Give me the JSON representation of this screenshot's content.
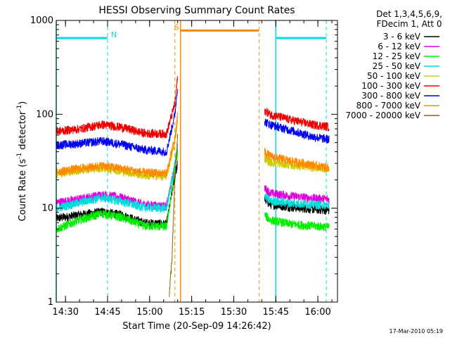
{
  "chart_data": {
    "type": "line",
    "title": "HESSI Observing Summary Count Rates",
    "xlabel": "Start Time (20-Sep-09 14:26:42)",
    "ylabel_main": "Count Rate (s",
    "ylabel_sup1": "-1",
    "ylabel_mid": " detector",
    "ylabel_sup2": "-1",
    "ylabel_end": ")",
    "y_scale": "log",
    "ylim": [
      1,
      1000
    ],
    "xlim": [
      "14:26:42",
      "16:07:00"
    ],
    "y_ticks": [
      {
        "value": 1,
        "label": "1"
      },
      {
        "value": 10,
        "label": "10"
      },
      {
        "value": 100,
        "label": "100"
      },
      {
        "value": 1000,
        "label": "1000"
      }
    ],
    "x_ticks": [
      {
        "time": "14:30",
        "label": "14:30"
      },
      {
        "time": "14:45",
        "label": "14:45"
      },
      {
        "time": "15:00",
        "label": "15:00"
      },
      {
        "time": "15:15",
        "label": "15:15"
      },
      {
        "time": "15:30",
        "label": "15:30"
      },
      {
        "time": "15:45",
        "label": "15:45"
      },
      {
        "time": "16:00",
        "label": "16:00"
      }
    ],
    "legend_header": [
      "Det 1,3,4,5,6,9,",
      "FDecim 1, Att 0"
    ],
    "legend_placement": "right",
    "series": [
      {
        "name": "3 - 6 keV",
        "color": "#000000",
        "seg1": [
          [
            "14:26:42",
            7.8
          ],
          [
            "14:35",
            8.5
          ],
          [
            "14:43",
            9.2
          ],
          [
            "14:50",
            8.5
          ],
          [
            "14:58",
            7.0
          ],
          [
            "15:06",
            6.8
          ],
          [
            "15:09",
            22
          ],
          [
            "15:10",
            30
          ]
        ],
        "seg2": [
          [
            "15:41",
            12.5
          ],
          [
            "15:43",
            11.0
          ],
          [
            "15:50",
            10.3
          ],
          [
            "15:58",
            9.8
          ],
          [
            "16:04",
            9.5
          ]
        ]
      },
      {
        "name": "6 - 12 keV",
        "color": "#dd00dd",
        "seg1": [
          [
            "14:26:42",
            11.5
          ],
          [
            "14:35",
            12.5
          ],
          [
            "14:43",
            14.0
          ],
          [
            "14:50",
            13.0
          ],
          [
            "14:58",
            11.0
          ],
          [
            "15:06",
            10.5
          ],
          [
            "15:09",
            28
          ],
          [
            "15:10",
            45
          ]
        ],
        "seg2": [
          [
            "15:41",
            16.5
          ],
          [
            "15:43",
            14.5
          ],
          [
            "15:50",
            13.5
          ],
          [
            "15:58",
            12.8
          ],
          [
            "16:04",
            12.5
          ]
        ]
      },
      {
        "name": "12 - 25 keV",
        "color": "#00ee00",
        "seg1": [
          [
            "14:26:42",
            6.0
          ],
          [
            "14:35",
            7.5
          ],
          [
            "14:43",
            8.8
          ],
          [
            "14:50",
            8.0
          ],
          [
            "14:58",
            6.5
          ],
          [
            "15:06",
            6.4
          ],
          [
            "15:09",
            25
          ],
          [
            "15:10",
            40
          ]
        ],
        "seg2": [
          [
            "15:41",
            8.5
          ],
          [
            "15:43",
            7.5
          ],
          [
            "15:50",
            6.8
          ],
          [
            "15:58",
            6.5
          ],
          [
            "16:04",
            6.3
          ]
        ]
      },
      {
        "name": "25 - 50 keV",
        "color": "#00dddd",
        "seg1": [
          [
            "14:26:42",
            10.0
          ],
          [
            "14:35",
            11.5
          ],
          [
            "14:43",
            13.0
          ],
          [
            "14:50",
            11.8
          ],
          [
            "14:58",
            10.2
          ],
          [
            "15:06",
            10.0
          ],
          [
            "15:09",
            30
          ],
          [
            "15:10",
            50
          ]
        ],
        "seg2": [
          [
            "15:41",
            13.5
          ],
          [
            "15:43",
            12.0
          ],
          [
            "15:50",
            11.3
          ],
          [
            "15:58",
            11.0
          ],
          [
            "16:04",
            10.8
          ]
        ]
      },
      {
        "name": "50 - 100 keV",
        "color": "#cccc00",
        "seg1": [
          [
            "14:26:42",
            23.5
          ],
          [
            "14:35",
            25.5
          ],
          [
            "14:43",
            27.0
          ],
          [
            "14:50",
            25.0
          ],
          [
            "14:58",
            22.5
          ],
          [
            "15:06",
            22.0
          ],
          [
            "15:09",
            50
          ],
          [
            "15:10",
            90
          ]
        ],
        "seg2": [
          [
            "15:41",
            34
          ],
          [
            "15:43",
            31
          ],
          [
            "15:50",
            29
          ],
          [
            "15:58",
            27.5
          ],
          [
            "16:04",
            26.5
          ]
        ]
      },
      {
        "name": "100 - 300 keV",
        "color": "#ee0000",
        "seg1": [
          [
            "14:26:42",
            66
          ],
          [
            "14:35",
            70
          ],
          [
            "14:43",
            78
          ],
          [
            "14:50",
            73
          ],
          [
            "14:58",
            63
          ],
          [
            "15:06",
            62
          ],
          [
            "15:09",
            130
          ],
          [
            "15:10",
            250
          ]
        ],
        "seg2": [
          [
            "15:41",
            110
          ],
          [
            "15:43",
            100
          ],
          [
            "15:50",
            88
          ],
          [
            "15:58",
            78
          ],
          [
            "16:04",
            74
          ]
        ]
      },
      {
        "name": "300 - 800 keV",
        "color": "#0000ee",
        "seg1": [
          [
            "14:26:42",
            47
          ],
          [
            "14:35",
            49
          ],
          [
            "14:43",
            52
          ],
          [
            "14:50",
            48
          ],
          [
            "14:58",
            42
          ],
          [
            "15:06",
            40
          ],
          [
            "15:09",
            100
          ],
          [
            "15:10",
            200
          ]
        ],
        "seg2": [
          [
            "15:41",
            84
          ],
          [
            "15:43",
            78
          ],
          [
            "15:50",
            68
          ],
          [
            "15:58",
            58
          ],
          [
            "16:04",
            54
          ]
        ]
      },
      {
        "name": "800 - 7000 keV",
        "color": "#ff8800",
        "seg1": [
          [
            "14:26:42",
            24.5
          ],
          [
            "14:35",
            26.5
          ],
          [
            "14:43",
            28.5
          ],
          [
            "14:50",
            26.5
          ],
          [
            "14:58",
            24.0
          ],
          [
            "15:06",
            23.5
          ],
          [
            "15:09",
            55
          ],
          [
            "15:10",
            100
          ]
        ],
        "seg2": [
          [
            "15:41",
            40
          ],
          [
            "15:43",
            36
          ],
          [
            "15:50",
            32
          ],
          [
            "15:58",
            29
          ],
          [
            "16:04",
            27
          ]
        ]
      },
      {
        "name": "7000 - 20000 keV",
        "color": "#886600",
        "seg1": [
          [
            "15:07",
            1.2
          ],
          [
            "15:08",
            3
          ],
          [
            "15:09",
            20
          ],
          [
            "15:10",
            60
          ]
        ],
        "seg2": []
      }
    ],
    "flags": [
      {
        "label": "N",
        "color": "#00dddd",
        "level": 650,
        "start": "14:26:42",
        "end": "14:45",
        "solid_x": [
          "14:26:42"
        ],
        "dashed_x": [
          "14:45"
        ]
      },
      {
        "label": "S",
        "color": "#ff8800",
        "level": 780,
        "start": "15:11",
        "end": "15:39",
        "solid_x": [
          "15:11"
        ],
        "dashed_x": [
          "15:09",
          "15:39"
        ]
      },
      {
        "label": "",
        "color": "#00dddd",
        "level": 650,
        "start": "15:45",
        "end": "16:03",
        "solid_x": [
          "15:45"
        ],
        "dashed_x": [
          "16:03"
        ]
      }
    ]
  },
  "footer": {
    "timestamp": "17-Mar-2010 05:19"
  }
}
